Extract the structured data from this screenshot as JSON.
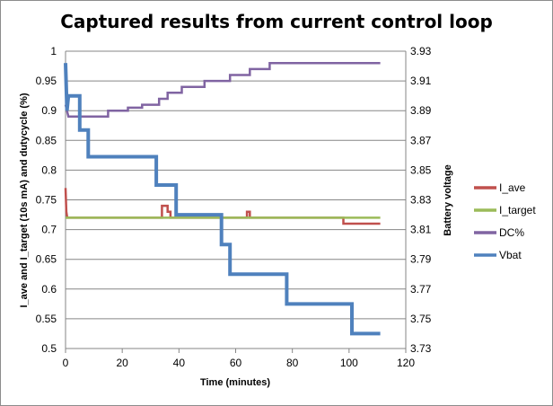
{
  "chart_data": {
    "type": "line",
    "title": "Captured results from current control loop",
    "xlabel": "Time (minutes)",
    "ylabel": "I_ave and I_target (10s mA) and dutycycle (%)",
    "y2label": "Battery voltage",
    "xlim": [
      0,
      120
    ],
    "ylim": [
      0.5,
      1
    ],
    "y2lim": [
      3.73,
      3.93
    ],
    "x_ticks": [
      "0",
      "20",
      "40",
      "60",
      "80",
      "100",
      "120"
    ],
    "y_ticks": [
      "0.5",
      "0.55",
      "0.6",
      "0.65",
      "0.7",
      "0.75",
      "0.8",
      "0.85",
      "0.9",
      "0.95",
      "1"
    ],
    "y2_ticks": [
      "3.73",
      "3.75",
      "3.77",
      "3.79",
      "3.81",
      "3.83",
      "3.85",
      "3.87",
      "3.89",
      "3.91",
      "3.93"
    ],
    "grid": "horizontal",
    "legend_position": "right",
    "series": [
      {
        "name": "I_ave",
        "axis": "left",
        "color": "#C0504D",
        "width": 2.5,
        "points": [
          [
            0,
            0.77
          ],
          [
            0.3,
            0.73
          ],
          [
            0.6,
            0.72
          ],
          [
            34,
            0.72
          ],
          [
            34,
            0.74
          ],
          [
            36,
            0.74
          ],
          [
            36,
            0.73
          ],
          [
            37,
            0.73
          ],
          [
            37,
            0.72
          ],
          [
            64,
            0.72
          ],
          [
            64,
            0.73
          ],
          [
            65,
            0.73
          ],
          [
            65,
            0.72
          ],
          [
            98,
            0.72
          ],
          [
            98,
            0.71
          ],
          [
            111,
            0.71
          ]
        ]
      },
      {
        "name": "I_target",
        "axis": "left",
        "color": "#9BBB59",
        "width": 2.5,
        "points": [
          [
            0,
            0.72
          ],
          [
            111,
            0.72
          ]
        ]
      },
      {
        "name": "DC%",
        "axis": "left",
        "color": "#8064A2",
        "width": 2.5,
        "points": [
          [
            0,
            0.91
          ],
          [
            1,
            0.89
          ],
          [
            15,
            0.89
          ],
          [
            15,
            0.9
          ],
          [
            22,
            0.9
          ],
          [
            22,
            0.905
          ],
          [
            27,
            0.905
          ],
          [
            27,
            0.91
          ],
          [
            33,
            0.91
          ],
          [
            33,
            0.92
          ],
          [
            36,
            0.92
          ],
          [
            36,
            0.93
          ],
          [
            41,
            0.93
          ],
          [
            41,
            0.94
          ],
          [
            49,
            0.94
          ],
          [
            49,
            0.95
          ],
          [
            58,
            0.95
          ],
          [
            58,
            0.96
          ],
          [
            65,
            0.96
          ],
          [
            65,
            0.97
          ],
          [
            72,
            0.97
          ],
          [
            72,
            0.98
          ],
          [
            111,
            0.98
          ]
        ]
      },
      {
        "name": "Vbat",
        "axis": "right",
        "color": "#4F81BD",
        "width": 4,
        "points": [
          [
            0,
            3.922
          ],
          [
            0.5,
            3.89
          ],
          [
            1,
            3.9
          ],
          [
            5,
            3.9
          ],
          [
            5,
            3.877
          ],
          [
            8,
            3.877
          ],
          [
            8,
            3.859
          ],
          [
            32,
            3.859
          ],
          [
            32,
            3.84
          ],
          [
            39,
            3.84
          ],
          [
            39,
            3.82
          ],
          [
            55,
            3.82
          ],
          [
            55,
            3.8
          ],
          [
            58,
            3.8
          ],
          [
            58,
            3.78
          ],
          [
            78,
            3.78
          ],
          [
            78,
            3.76
          ],
          [
            101,
            3.76
          ],
          [
            101,
            3.74
          ],
          [
            111,
            3.74
          ]
        ]
      }
    ]
  }
}
